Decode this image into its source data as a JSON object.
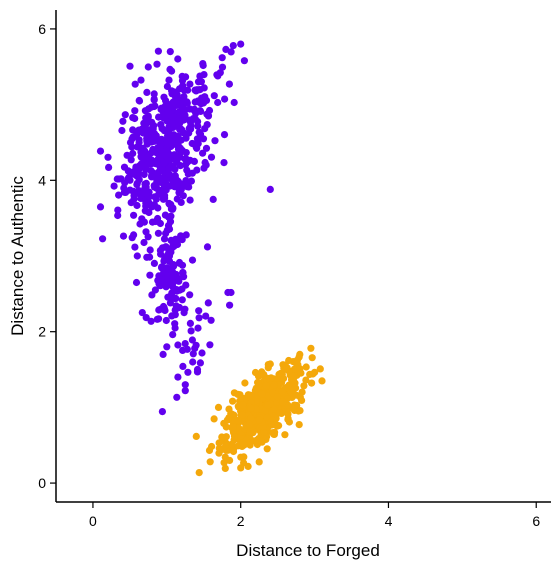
{
  "chart_data": {
    "type": "scatter",
    "title": "",
    "xlabel": "Distance to Forged",
    "ylabel": "Distance to Authentic",
    "xlim": [
      -0.5,
      6.2
    ],
    "ylim": [
      -0.25,
      6.25
    ],
    "x_ticks": [
      0,
      2,
      4,
      6
    ],
    "y_ticks": [
      0,
      2,
      4,
      6
    ],
    "grid": false,
    "legend": "none",
    "series": [
      {
        "color": "#6200EE",
        "clusters": [
          {
            "count": 480,
            "center": [
              0.95,
              4.35
            ],
            "sd": [
              0.28,
              0.48
            ],
            "corr": 0.35
          },
          {
            "count": 110,
            "center": [
              1.02,
              2.8
            ],
            "sd": [
              0.13,
              0.3
            ],
            "corr": 0.1
          },
          {
            "count": 40,
            "center": [
              1.25,
              2.1
            ],
            "sd": [
              0.25,
              0.45
            ],
            "corr": 0.3
          },
          {
            "count": 35,
            "center": [
              1.5,
              5.1
            ],
            "sd": [
              0.25,
              0.35
            ],
            "corr": 0.3
          }
        ],
        "extra_points": [
          [
            2.0,
            5.8
          ],
          [
            2.05,
            5.58
          ],
          [
            1.9,
            5.78
          ],
          [
            1.8,
            5.73
          ],
          [
            1.75,
            5.62
          ],
          [
            2.4,
            3.88
          ],
          [
            1.85,
            2.35
          ],
          [
            1.25,
            1.22
          ],
          [
            1.25,
            1.3
          ],
          [
            1.15,
            1.4
          ],
          [
            1.35,
            1.6
          ],
          [
            1.0,
            1.8
          ],
          [
            0.95,
            1.7
          ],
          [
            0.6,
            3.0
          ],
          [
            1.55,
            3.12
          ],
          [
            1.6,
            2.15
          ]
        ]
      },
      {
        "color": "#F4A80B",
        "clusters": [
          {
            "count": 520,
            "center": [
              2.3,
              0.98
            ],
            "sd": [
              0.26,
              0.26
            ],
            "corr": 0.6
          }
        ],
        "extra_points": [
          [
            2.95,
            1.78
          ],
          [
            2.0,
            0.2
          ],
          [
            2.1,
            0.22
          ],
          [
            2.25,
            0.28
          ],
          [
            3.1,
            1.35
          ],
          [
            1.7,
            1.0
          ],
          [
            2.8,
            1.7
          ],
          [
            2.65,
            1.62
          ],
          [
            1.85,
            0.3
          ]
        ]
      }
    ]
  }
}
